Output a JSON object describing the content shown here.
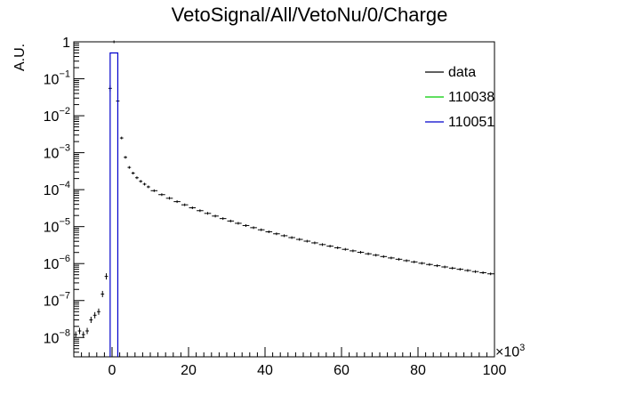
{
  "chart_data": {
    "type": "histogram",
    "title": "VetoSignal/All/VetoNu/0/Charge",
    "xlabel": "",
    "ylabel": "A.U.",
    "x_scale_factor": "×10",
    "x_scale_exponent": "3",
    "xlim": [
      -10,
      100
    ],
    "ylim": [
      3e-09,
      1
    ],
    "y_scale": "log",
    "x_ticks": [
      0,
      20,
      40,
      60,
      80,
      100
    ],
    "y_ticks": [
      {
        "value": 1,
        "mant": "1",
        "exp": ""
      },
      {
        "value": 0.1,
        "mant": "10",
        "exp": "−1"
      },
      {
        "value": 0.01,
        "mant": "10",
        "exp": "−2"
      },
      {
        "value": 0.001,
        "mant": "10",
        "exp": "−3"
      },
      {
        "value": 0.0001,
        "mant": "10",
        "exp": "−4"
      },
      {
        "value": 1e-05,
        "mant": "10",
        "exp": "−5"
      },
      {
        "value": 1e-06,
        "mant": "10",
        "exp": "−6"
      },
      {
        "value": 1e-07,
        "mant": "10",
        "exp": "−7"
      },
      {
        "value": 1e-08,
        "mant": "10",
        "exp": "−8"
      }
    ],
    "legend_position": "top-right",
    "series": [
      {
        "name": "data",
        "color": "#000000",
        "style": "error-bars",
        "points": [
          [
            -9.5,
            1.2e-08
          ],
          [
            -8.5,
            1.5e-08
          ],
          [
            -7.5,
            1.2e-08
          ],
          [
            -6.5,
            1.5e-08
          ],
          [
            -5.5,
            3e-08
          ],
          [
            -4.5,
            4e-08
          ],
          [
            -3.5,
            5e-08
          ],
          [
            -2.5,
            1.5e-07
          ],
          [
            -1.5,
            4.5e-07
          ],
          [
            -0.5,
            0.055
          ],
          [
            0.5,
            1.0
          ],
          [
            1.5,
            0.025
          ],
          [
            2.5,
            0.0025
          ],
          [
            3.5,
            0.00075
          ],
          [
            4.5,
            0.0004
          ],
          [
            5.5,
            0.00028
          ],
          [
            6.5,
            0.00021
          ],
          [
            7.5,
            0.000168
          ],
          [
            8.5,
            0.000141
          ],
          [
            9.5,
            0.000119
          ],
          [
            11.0,
            9.38e-05
          ],
          [
            13.0,
            7.33e-05
          ],
          [
            15.0,
            5.85e-05
          ],
          [
            17.0,
            4.74e-05
          ],
          [
            19.0,
            3.89e-05
          ],
          [
            21.0,
            3.23e-05
          ],
          [
            23.0,
            2.7e-05
          ],
          [
            25.0,
            2.28e-05
          ],
          [
            27.0,
            1.93e-05
          ],
          [
            29.0,
            1.65e-05
          ],
          [
            31.0,
            1.42e-05
          ],
          [
            33.0,
            1.23e-05
          ],
          [
            35.0,
            1.07e-05
          ],
          [
            37.0,
            9.36e-06
          ],
          [
            39.0,
            8.21e-06
          ],
          [
            41.0,
            7.23e-06
          ],
          [
            43.0,
            6.39e-06
          ],
          [
            45.0,
            5.67e-06
          ],
          [
            47.0,
            5.05e-06
          ],
          [
            49.0,
            4.51e-06
          ],
          [
            51.0,
            4.04e-06
          ],
          [
            53.0,
            3.63e-06
          ],
          [
            55.0,
            3.27e-06
          ],
          [
            57.0,
            2.96e-06
          ],
          [
            59.0,
            2.68e-06
          ],
          [
            61.0,
            2.43e-06
          ],
          [
            63.0,
            2.21e-06
          ],
          [
            65.0,
            2.02e-06
          ],
          [
            67.0,
            1.84e-06
          ],
          [
            69.0,
            1.69e-06
          ],
          [
            71.0,
            1.55e-06
          ],
          [
            73.0,
            1.42e-06
          ],
          [
            75.0,
            1.31e-06
          ],
          [
            77.0,
            1.2e-06
          ],
          [
            79.0,
            1.11e-06
          ],
          [
            81.0,
            1.02e-06
          ],
          [
            83.0,
            9.45e-07
          ],
          [
            85.0,
            8.75e-07
          ],
          [
            87.0,
            8.11e-07
          ],
          [
            89.0,
            7.53e-07
          ],
          [
            91.0,
            7e-07
          ],
          [
            93.0,
            6.51e-07
          ],
          [
            95.0,
            6.07e-07
          ],
          [
            97.0,
            5.66e-07
          ],
          [
            99.0,
            5.28e-07
          ]
        ]
      },
      {
        "name": "110038",
        "color": "#00cc00",
        "style": "histogram",
        "bins": []
      },
      {
        "name": "110051",
        "color": "#0000cc",
        "style": "histogram",
        "bins": [
          {
            "x0": -0.5,
            "x1": 1.5,
            "value": 0.5
          }
        ]
      }
    ]
  }
}
